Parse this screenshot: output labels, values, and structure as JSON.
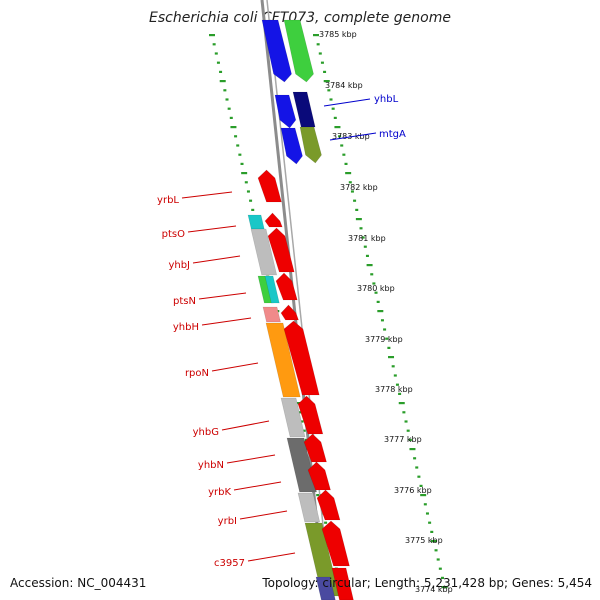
{
  "title": "Escherichia coli CFT073, complete genome",
  "footer": {
    "accession": "Accession: NC_004431",
    "topology": "Topology: circular; Length: 5,231,428 bp; Genes: 5,454"
  },
  "colors": {
    "ticks": "#2a9d2a",
    "backbone": "#8c8c8c",
    "red": "#ee0000",
    "blue": "#1414e6",
    "navy": "#0a0a7a",
    "green": "#3ecf3e",
    "olive": "#7a9a2a",
    "orange": "#ff9a10",
    "gray": "#bdbdbd",
    "darkgray": "#6c6c6c",
    "cyan": "#19c7c7",
    "pink": "#f08a8a",
    "purple": "#4a4aa0",
    "label_red": "#cc0000",
    "label_blue": "#0000cc"
  },
  "scale_ticks": [
    {
      "label": "3785 kbp"
    },
    {
      "label": "3784 kbp"
    },
    {
      "label": "3783 kbp"
    },
    {
      "label": "3782 kbp"
    },
    {
      "label": "3781 kbp"
    },
    {
      "label": "3780 kbp"
    },
    {
      "label": "3779 kbp"
    },
    {
      "label": "3778 kbp"
    },
    {
      "label": "3777 kbp"
    },
    {
      "label": "3776 kbp"
    },
    {
      "label": "3775 kbp"
    },
    {
      "label": "3774 kbp"
    }
  ],
  "gene_labels": {
    "right": [
      {
        "name": "yhbL"
      },
      {
        "name": "mtgA"
      }
    ],
    "left": [
      {
        "name": "yrbL"
      },
      {
        "name": "ptsO"
      },
      {
        "name": "yhbJ"
      },
      {
        "name": "ptsN"
      },
      {
        "name": "yhbH"
      },
      {
        "name": "rpoN"
      },
      {
        "name": "yhbG"
      },
      {
        "name": "yhbN"
      },
      {
        "name": "yrbK"
      },
      {
        "name": "yrbI"
      },
      {
        "name": "c3957"
      }
    ]
  }
}
